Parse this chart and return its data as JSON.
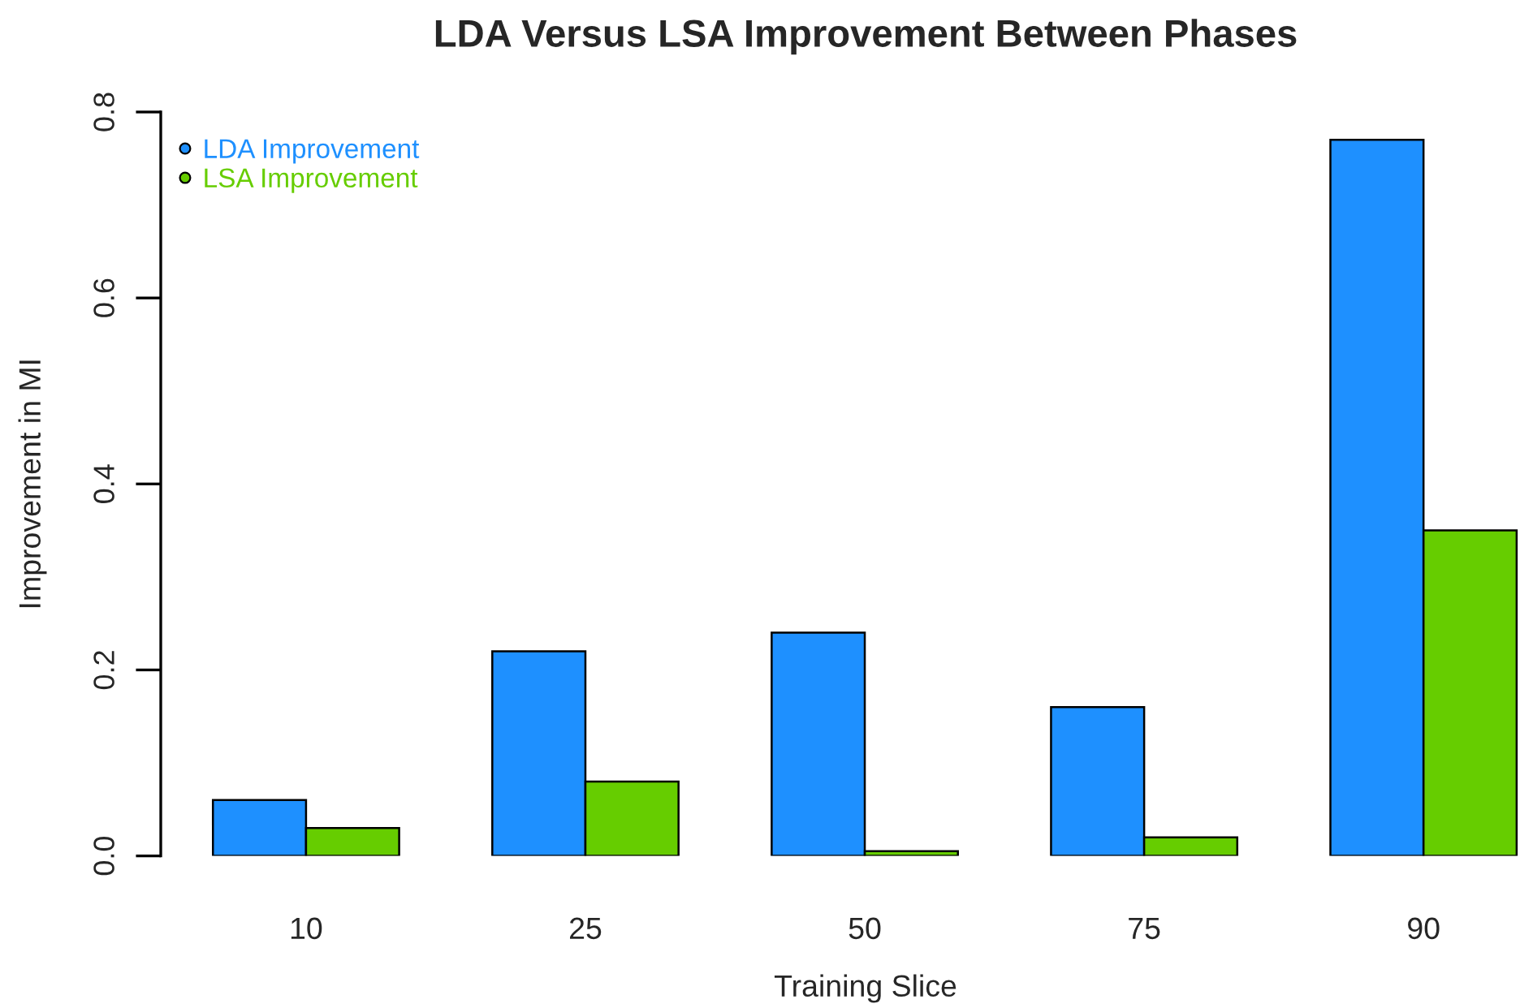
{
  "chart_data": {
    "type": "bar",
    "title": "LDA Versus LSA Improvement Between Phases",
    "xlabel": "Training Slice",
    "ylabel": "Improvement in MI",
    "categories": [
      "10",
      "25",
      "50",
      "75",
      "90"
    ],
    "series": [
      {
        "name": "LDA Improvement",
        "color": "#1e90ff",
        "values": [
          0.06,
          0.22,
          0.24,
          0.16,
          0.77
        ]
      },
      {
        "name": "LSA Improvement",
        "color": "#66cd00",
        "values": [
          0.03,
          0.08,
          0.005,
          0.02,
          0.35
        ]
      }
    ],
    "ylim": [
      0,
      0.8
    ],
    "yticks": [
      {
        "value": 0,
        "label": "0.0"
      },
      0.2,
      0.4,
      0.6,
      0.8
    ],
    "grid": false,
    "legend": "top left"
  }
}
